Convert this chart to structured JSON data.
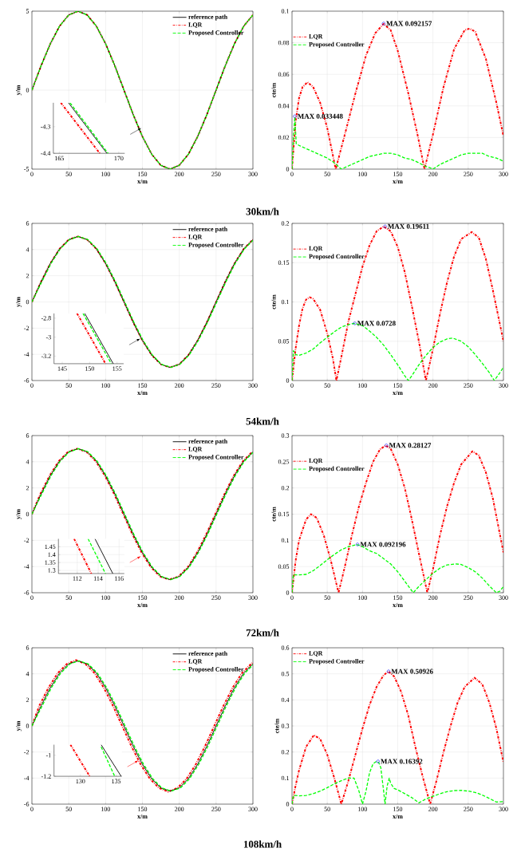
{
  "chart_data": [
    {
      "type": "line",
      "xlabel": "x/m",
      "ylabel": "y/m",
      "xlim": [
        0,
        300
      ],
      "xticks": [
        0,
        50,
        100,
        150,
        200,
        250,
        300
      ],
      "ylim": [
        -5,
        5
      ],
      "yticks": [
        -5,
        0,
        5
      ],
      "grid": true,
      "legend": "top right",
      "annotations": [
        "30km/h"
      ],
      "x": [
        0,
        12.5,
        25,
        37.5,
        50,
        62.5,
        75,
        87.5,
        100,
        112.5,
        125,
        137.5,
        150,
        162.5,
        175,
        187.5,
        200,
        212.5,
        225,
        237.5,
        250,
        262.5,
        275,
        287.5,
        300
      ],
      "series": [
        {
          "name": "reference path",
          "color": "#000000",
          "line_style": "solid",
          "values": [
            0,
            1.55,
            2.94,
            4.05,
            4.76,
            5,
            4.76,
            4.05,
            2.94,
            1.55,
            0,
            -1.55,
            -2.94,
            -4.05,
            -4.76,
            -5,
            -4.76,
            -4.05,
            -2.94,
            -1.55,
            0,
            1.55,
            2.94,
            4.05,
            4.76
          ]
        },
        {
          "name": "LQR",
          "color": "#ff0000",
          "line_style": "dashdot",
          "values": [
            0,
            1.55,
            2.94,
            4.05,
            4.76,
            5,
            4.76,
            4.05,
            2.94,
            1.55,
            0,
            -1.55,
            -2.94,
            -4.05,
            -4.76,
            -5,
            -4.76,
            -4.05,
            -2.94,
            -1.55,
            0,
            1.55,
            2.94,
            4.05,
            4.76
          ]
        },
        {
          "name": "Proposed Controller",
          "color": "#00ff00",
          "line_style": "dashed",
          "values": [
            0,
            1.55,
            2.94,
            4.05,
            4.76,
            5,
            4.76,
            4.05,
            2.94,
            1.55,
            0,
            -1.55,
            -2.94,
            -4.05,
            -4.76,
            -5,
            -4.76,
            -4.05,
            -2.94,
            -1.55,
            0,
            1.55,
            2.94,
            4.05,
            4.76
          ]
        }
      ]
    },
    {
      "type": "line",
      "xlim": [
        164.5,
        170.5
      ],
      "xticks": [
        165,
        170
      ],
      "ylim": [
        -4.4,
        -4.21
      ],
      "yticks": [
        -4.4,
        -4.3
      ],
      "series": [
        {
          "color": "#000000",
          "line_style": "solid",
          "x": [
            165.77,
            169.0
          ],
          "values": [
            -4.21,
            -4.4
          ]
        },
        {
          "color": "#ff0000",
          "line_style": "dashdot",
          "x": [
            165.13,
            168.4
          ],
          "values": [
            -4.21,
            -4.4
          ]
        },
        {
          "color": "#00ff00",
          "line_style": "dashed",
          "x": [
            165.9,
            169.1
          ],
          "values": [
            -4.21,
            -4.4
          ]
        }
      ]
    },
    {
      "type": "line",
      "xlabel": "x/m",
      "ylabel": "cte/m",
      "xlim": [
        0,
        300
      ],
      "xticks": [
        0,
        50,
        100,
        150,
        200,
        250,
        300
      ],
      "ylim": [
        0,
        0.1
      ],
      "yticks": [
        0,
        0.02,
        0.04,
        0.06,
        0.08,
        0.1
      ],
      "grid": true,
      "legend": "top left",
      "series": [
        {
          "name": "LQR",
          "color": "#ff0000",
          "line_style": "dashdot",
          "x": [
            0,
            5,
            10,
            15,
            22,
            30,
            40,
            50,
            62,
            75,
            90,
            105,
            118,
            130,
            140,
            150,
            165,
            178,
            188,
            200,
            215,
            230,
            245,
            252,
            260,
            275,
            290,
            300
          ],
          "values": [
            0,
            0.03,
            0.045,
            0.052,
            0.055,
            0.052,
            0.042,
            0.026,
            0,
            0.022,
            0.048,
            0.072,
            0.086,
            0.092,
            0.088,
            0.075,
            0.048,
            0.022,
            0,
            0.022,
            0.052,
            0.076,
            0.088,
            0.089,
            0.087,
            0.07,
            0.042,
            0.021
          ]
        },
        {
          "name": "Proposed Controller",
          "color": "#00ff00",
          "line_style": "dashed",
          "x": [
            0,
            2,
            4,
            6,
            10,
            20,
            30,
            40,
            50,
            60,
            65,
            70,
            80,
            90,
            100,
            110,
            120,
            130,
            140,
            150,
            160,
            170,
            180,
            188,
            195,
            200,
            210,
            220,
            230,
            240,
            250,
            260,
            270,
            275,
            280,
            290,
            300
          ],
          "values": [
            0,
            0.02,
            0.033,
            0.016,
            0.015,
            0.013,
            0.011,
            0.009,
            0.007,
            0.004,
            0.002,
            0,
            0.002,
            0.004,
            0.006,
            0.008,
            0.009,
            0.01,
            0.01,
            0.009,
            0.007,
            0.006,
            0.004,
            0.002,
            0.001,
            0,
            0.003,
            0.005,
            0.007,
            0.009,
            0.01,
            0.01,
            0.01,
            0.009,
            0.008,
            0.007,
            0.005
          ]
        },
        {
          "type": "scatter",
          "color": "#0000ff",
          "marker": "circle",
          "x": [
            4,
            130
          ],
          "values": [
            0.033448,
            0.092157
          ]
        }
      ],
      "annotations": [
        {
          "text": "MAX 0.033448",
          "x": 4,
          "y": 0.033448
        },
        {
          "text": "MAX 0.092157",
          "x": 130,
          "y": 0.092157
        }
      ]
    },
    {
      "type": "line",
      "xlabel": "x/m",
      "ylabel": "y/m",
      "xlim": [
        0,
        300
      ],
      "xticks": [
        0,
        50,
        100,
        150,
        200,
        250,
        300
      ],
      "ylim": [
        -6,
        6
      ],
      "yticks": [
        -6,
        -4,
        -2,
        0,
        2,
        4,
        6
      ],
      "grid": true,
      "legend": "top right",
      "annotations": [
        "54km/h"
      ],
      "x": [
        0,
        12.5,
        25,
        37.5,
        50,
        62.5,
        75,
        87.5,
        100,
        112.5,
        125,
        137.5,
        150,
        162.5,
        175,
        187.5,
        200,
        212.5,
        225,
        237.5,
        250,
        262.5,
        275,
        287.5,
        300
      ],
      "series": [
        {
          "name": "reference path",
          "color": "#000000",
          "line_style": "solid",
          "values": [
            0,
            1.55,
            2.94,
            4.05,
            4.76,
            5,
            4.76,
            4.05,
            2.94,
            1.55,
            0,
            -1.55,
            -2.94,
            -4.05,
            -4.76,
            -5,
            -4.76,
            -4.05,
            -2.94,
            -1.55,
            0,
            1.55,
            2.94,
            4.05,
            4.76
          ]
        },
        {
          "name": "LQR",
          "color": "#ff0000",
          "line_style": "dashdot",
          "values": [
            0,
            1.55,
            2.94,
            4.05,
            4.76,
            5,
            4.76,
            4.05,
            2.94,
            1.55,
            0,
            -1.55,
            -2.94,
            -4.05,
            -4.76,
            -5,
            -4.76,
            -4.05,
            -2.94,
            -1.55,
            0,
            1.55,
            2.94,
            4.05,
            4.76
          ]
        },
        {
          "name": "Proposed Controller",
          "color": "#00ff00",
          "line_style": "dashed",
          "x": [
            0,
            13.5,
            26,
            38.5,
            51,
            63.5,
            76,
            88.5,
            101,
            113.5,
            126,
            138.5,
            151,
            163.5,
            176,
            188.5,
            201,
            213.5,
            226,
            238.5,
            251,
            263.5,
            276,
            288.5,
            300
          ],
          "values": [
            0,
            1.55,
            2.94,
            4.05,
            4.76,
            5,
            4.76,
            4.05,
            2.94,
            1.55,
            0,
            -1.55,
            -2.94,
            -4.05,
            -4.76,
            -5,
            -4.76,
            -4.05,
            -2.94,
            -1.55,
            0,
            1.55,
            2.94,
            4.05,
            4.7
          ]
        }
      ]
    },
    {
      "type": "line",
      "xlim": [
        143.5,
        156.2
      ],
      "xticks": [
        145,
        150,
        155
      ],
      "ylim": [
        -3.28,
        -2.75
      ],
      "yticks": [
        -3.2,
        -3,
        -2.8
      ],
      "series": [
        {
          "color": "#000000",
          "line_style": "solid",
          "x": [
            149.1,
            154.3
          ],
          "values": [
            -2.75,
            -3.28
          ]
        },
        {
          "color": "#ff0000",
          "line_style": "dashdot",
          "x": [
            147.7,
            152.9
          ],
          "values": [
            -2.75,
            -3.28
          ]
        },
        {
          "color": "#00ff00",
          "line_style": "dashed",
          "x": [
            148.8,
            153.96
          ],
          "values": [
            -2.75,
            -3.28
          ]
        }
      ]
    },
    {
      "type": "line",
      "xlabel": "x/m",
      "ylabel": "cte/m",
      "xlim": [
        0,
        300
      ],
      "xticks": [
        0,
        50,
        100,
        150,
        200,
        250,
        300
      ],
      "ylim": [
        0,
        0.2
      ],
      "yticks": [
        0,
        0.05,
        0.1,
        0.15,
        0.2
      ],
      "grid": true,
      "legend": "top left",
      "series": [
        {
          "name": "LQR",
          "color": "#ff0000",
          "line_style": "dashdot",
          "x": [
            0,
            5,
            10,
            15,
            20,
            25,
            30,
            40,
            50,
            58,
            63,
            70,
            80,
            90,
            100,
            110,
            120,
            130,
            140,
            150,
            160,
            170,
            180,
            190,
            200,
            210,
            220,
            230,
            240,
            255,
            265,
            275,
            285,
            300
          ],
          "values": [
            0,
            0.04,
            0.07,
            0.092,
            0.103,
            0.106,
            0.104,
            0.09,
            0.06,
            0.028,
            0,
            0.03,
            0.075,
            0.11,
            0.145,
            0.172,
            0.19,
            0.196,
            0.19,
            0.17,
            0.138,
            0.095,
            0.05,
            0,
            0.04,
            0.085,
            0.125,
            0.158,
            0.18,
            0.189,
            0.182,
            0.155,
            0.115,
            0.05
          ]
        },
        {
          "name": "Proposed Controller",
          "color": "#00ff00",
          "line_style": "dashed",
          "x": [
            0,
            2,
            5,
            10,
            20,
            30,
            40,
            50,
            60,
            70,
            80,
            88,
            100,
            110,
            120,
            130,
            140,
            150,
            160,
            165,
            170,
            180,
            190,
            200,
            210,
            220,
            228,
            240,
            250,
            260,
            270,
            280,
            287,
            295,
            300
          ],
          "values": [
            0,
            0.038,
            0.033,
            0.032,
            0.035,
            0.04,
            0.048,
            0.055,
            0.062,
            0.068,
            0.071,
            0.0728,
            0.07,
            0.063,
            0.055,
            0.045,
            0.033,
            0.02,
            0.006,
            0,
            0.006,
            0.02,
            0.032,
            0.042,
            0.049,
            0.053,
            0.054,
            0.05,
            0.043,
            0.033,
            0.022,
            0.01,
            0,
            0.01,
            0.017
          ]
        },
        {
          "type": "scatter",
          "color": "#0000ff",
          "marker": "circle",
          "x": [
            132,
            89
          ],
          "values": [
            0.19611,
            0.0728
          ]
        }
      ],
      "annotations": [
        {
          "text": "MAX 0.19611",
          "x": 132,
          "y": 0.19611
        },
        {
          "text": "MAX 0.0728",
          "x": 89,
          "y": 0.0728
        }
      ]
    },
    {
      "type": "line",
      "xlabel": "x/m",
      "ylabel": "y/m",
      "xlim": [
        0,
        300
      ],
      "xticks": [
        0,
        50,
        100,
        150,
        200,
        250,
        300
      ],
      "ylim": [
        -6,
        6
      ],
      "yticks": [
        -6,
        -4,
        -2,
        0,
        2,
        4,
        6
      ],
      "grid": true,
      "legend": "top right",
      "annotations": [
        "72km/h"
      ],
      "x": [
        0,
        12.5,
        25,
        37.5,
        50,
        62.5,
        75,
        87.5,
        100,
        112.5,
        125,
        137.5,
        150,
        162.5,
        175,
        187.5,
        200,
        212.5,
        225,
        237.5,
        250,
        262.5,
        275,
        287.5,
        300
      ],
      "series": [
        {
          "name": "reference path",
          "color": "#000000",
          "line_style": "solid",
          "values": [
            0,
            1.55,
            2.94,
            4.05,
            4.76,
            5,
            4.76,
            4.05,
            2.94,
            1.55,
            0,
            -1.55,
            -2.94,
            -4.05,
            -4.76,
            -5,
            -4.76,
            -4.05,
            -2.94,
            -1.55,
            0,
            1.55,
            2.94,
            4.05,
            4.76
          ]
        },
        {
          "name": "LQR",
          "color": "#ff0000",
          "line_style": "dashdot",
          "x": [
            0,
            11.5,
            24,
            36.5,
            49,
            61.5,
            74,
            86.5,
            99,
            111.5,
            124,
            136.5,
            149,
            161.5,
            174,
            186.5,
            199,
            211.5,
            224,
            236.5,
            249,
            261.5,
            274,
            286.5,
            299
          ],
          "values": [
            0,
            1.55,
            2.94,
            4.05,
            4.76,
            5,
            4.76,
            4.05,
            2.94,
            1.55,
            0,
            -1.55,
            -2.94,
            -4.05,
            -4.76,
            -5,
            -4.76,
            -4.05,
            -2.94,
            -1.55,
            0,
            1.55,
            2.94,
            4.05,
            4.76
          ]
        },
        {
          "name": "Proposed Controller",
          "color": "#00ff00",
          "line_style": "dashed",
          "x": [
            0,
            13.5,
            26,
            38.5,
            51,
            63.5,
            76,
            88.5,
            101,
            113.5,
            126,
            138.5,
            151,
            163.5,
            176,
            188.5,
            201,
            213.5,
            226,
            238.5,
            251,
            263.5,
            276,
            288.5,
            300
          ],
          "values": [
            0,
            1.55,
            2.94,
            4.05,
            4.76,
            5,
            4.76,
            4.05,
            2.94,
            1.55,
            0,
            -1.55,
            -2.94,
            -4.05,
            -4.76,
            -5,
            -4.76,
            -4.05,
            -2.94,
            -1.55,
            0,
            1.55,
            2.94,
            4.05,
            4.7
          ]
        }
      ]
    },
    {
      "type": "line",
      "xlim": [
        110.2,
        116.5
      ],
      "xticks": [
        112,
        114,
        116
      ],
      "ylim": [
        1.28,
        1.5
      ],
      "yticks": [
        1.3,
        1.35,
        1.4,
        1.45
      ],
      "grid": true,
      "series": [
        {
          "color": "#000000",
          "line_style": "solid",
          "x": [
            113.7,
            115.4
          ],
          "values": [
            1.5,
            1.28
          ]
        },
        {
          "color": "#ff0000",
          "line_style": "dashdot",
          "x": [
            111.7,
            113.35
          ],
          "values": [
            1.5,
            1.28
          ]
        },
        {
          "color": "#00ff00",
          "line_style": "dashed",
          "x": [
            113.04,
            114.7
          ],
          "values": [
            1.5,
            1.28
          ]
        }
      ]
    },
    {
      "type": "line",
      "xlabel": "x/m",
      "ylabel": "cte/m",
      "xlim": [
        0,
        300
      ],
      "xticks": [
        0,
        50,
        100,
        150,
        200,
        250,
        300
      ],
      "ylim": [
        0,
        0.3
      ],
      "yticks": [
        0,
        0.05,
        0.1,
        0.15,
        0.2,
        0.25,
        0.3
      ],
      "grid": true,
      "legend": "top left",
      "series": [
        {
          "name": "LQR",
          "color": "#ff0000",
          "line_style": "dashdot",
          "x": [
            0,
            5,
            10,
            20,
            27,
            35,
            45,
            55,
            66,
            75,
            85,
            95,
            105,
            115,
            125,
            133,
            140,
            150,
            160,
            170,
            180,
            192,
            200,
            210,
            220,
            230,
            240,
            256,
            265,
            275,
            285,
            300
          ],
          "values": [
            0,
            0.06,
            0.1,
            0.14,
            0.15,
            0.143,
            0.11,
            0.062,
            0,
            0.05,
            0.11,
            0.165,
            0.21,
            0.25,
            0.274,
            0.281,
            0.275,
            0.245,
            0.2,
            0.14,
            0.075,
            0,
            0.045,
            0.11,
            0.165,
            0.21,
            0.245,
            0.27,
            0.262,
            0.23,
            0.18,
            0.077
          ]
        },
        {
          "name": "Proposed Controller",
          "color": "#00ff00",
          "line_style": "dashed",
          "x": [
            0,
            2,
            5,
            10,
            20,
            30,
            40,
            50,
            60,
            70,
            80,
            92,
            100,
            110,
            120,
            130,
            140,
            150,
            160,
            172,
            180,
            190,
            200,
            210,
            220,
            232,
            240,
            250,
            260,
            270,
            280,
            290,
            295,
            300
          ],
          "values": [
            0,
            0.035,
            0.034,
            0.034,
            0.035,
            0.042,
            0.052,
            0.063,
            0.073,
            0.082,
            0.088,
            0.092,
            0.088,
            0.08,
            0.075,
            0.065,
            0.055,
            0.04,
            0.022,
            0,
            0.012,
            0.025,
            0.037,
            0.047,
            0.053,
            0.055,
            0.054,
            0.048,
            0.04,
            0.028,
            0.013,
            0,
            0.003,
            0.012
          ]
        },
        {
          "type": "scatter",
          "color": "#0000ff",
          "marker": "circle",
          "x": [
            134,
            93
          ],
          "values": [
            0.28127,
            0.092196
          ]
        }
      ],
      "annotations": [
        {
          "text": "MAX 0.28127",
          "x": 134,
          "y": 0.28127
        },
        {
          "text": "MAX 0.092196",
          "x": 93,
          "y": 0.092196
        }
      ]
    },
    {
      "type": "line",
      "xlabel": "x/m",
      "ylabel": "y/m",
      "xlim": [
        0,
        300
      ],
      "xticks": [
        0,
        50,
        100,
        150,
        200,
        250,
        300
      ],
      "ylim": [
        -6,
        6
      ],
      "yticks": [
        -6,
        -4,
        -2,
        0,
        2,
        4,
        6
      ],
      "grid": true,
      "legend": "top right",
      "annotations": [
        "108km/h"
      ],
      "x": [
        0,
        12.5,
        25,
        37.5,
        50,
        62.5,
        75,
        87.5,
        100,
        112.5,
        125,
        137.5,
        150,
        162.5,
        175,
        187.5,
        200,
        212.5,
        225,
        237.5,
        250,
        262.5,
        275,
        287.5,
        300
      ],
      "series": [
        {
          "name": "reference path",
          "color": "#000000",
          "line_style": "solid",
          "values": [
            0,
            1.55,
            2.94,
            4.05,
            4.76,
            5,
            4.76,
            4.05,
            2.94,
            1.55,
            0,
            -1.55,
            -2.94,
            -4.05,
            -4.76,
            -5,
            -4.76,
            -4.05,
            -2.94,
            -1.55,
            0,
            1.55,
            2.94,
            4.05,
            4.76
          ]
        },
        {
          "name": "LQR",
          "color": "#ff0000",
          "line_style": "dashdot",
          "x": [
            0,
            10,
            22.5,
            35,
            47.5,
            60,
            72.5,
            85,
            97.5,
            110,
            122.5,
            135,
            147.5,
            160,
            172.5,
            185,
            197.5,
            210,
            222.5,
            235,
            247.5,
            260,
            272.5,
            285,
            297.5,
            300
          ],
          "values": [
            0,
            1.55,
            2.94,
            4.05,
            4.76,
            5.05,
            4.76,
            4.05,
            2.94,
            1.55,
            0,
            -1.55,
            -2.94,
            -4.05,
            -4.76,
            -5.05,
            -4.76,
            -4.05,
            -2.94,
            -1.55,
            0,
            1.55,
            2.94,
            4.05,
            4.76,
            4.85
          ]
        },
        {
          "name": "Proposed Controller",
          "color": "#00ff00",
          "line_style": "dashed",
          "x": [
            0,
            14,
            26.5,
            39,
            51.5,
            64,
            76.5,
            89,
            101.5,
            114,
            126.5,
            139,
            151.5,
            164,
            176.5,
            189,
            201.5,
            214,
            226.5,
            239,
            251.5,
            264,
            276.5,
            289,
            300
          ],
          "values": [
            0,
            1.55,
            2.94,
            4.05,
            4.76,
            5,
            4.76,
            4.05,
            2.94,
            1.55,
            0,
            -1.55,
            -2.94,
            -4.05,
            -4.76,
            -5,
            -4.76,
            -4.05,
            -2.94,
            -1.55,
            0,
            1.55,
            2.94,
            4.05,
            4.68
          ]
        }
      ]
    },
    {
      "type": "line",
      "xlim": [
        126.3,
        135.8
      ],
      "xticks": [
        130,
        135
      ],
      "ylim": [
        -1.2,
        -0.9
      ],
      "yticks": [
        -1.2,
        -1
      ],
      "series": [
        {
          "color": "#000000",
          "line_style": "solid",
          "x": [
            132.9,
            135.7
          ],
          "values": [
            -0.9,
            -1.2
          ]
        },
        {
          "color": "#ff0000",
          "line_style": "dashdot",
          "x": [
            128.6,
            131.3
          ],
          "values": [
            -0.9,
            -1.2
          ]
        },
        {
          "color": "#00ff00",
          "line_style": "dashed",
          "x": [
            132.9,
            134.8
          ],
          "values": [
            -0.92,
            -1.2
          ]
        }
      ]
    },
    {
      "type": "line",
      "xlabel": "x/m",
      "ylabel": "cte/m",
      "xlim": [
        0,
        300
      ],
      "xticks": [
        0,
        50,
        100,
        150,
        200,
        250,
        300
      ],
      "ylim": [
        0,
        0.6
      ],
      "yticks": [
        0,
        0.1,
        0.2,
        0.3,
        0.4,
        0.5,
        0.6
      ],
      "grid": true,
      "legend": "top left",
      "series": [
        {
          "name": "LQR",
          "color": "#ff0000",
          "line_style": "dashdot",
          "x": [
            0,
            5,
            10,
            20,
            31,
            40,
            50,
            60,
            70,
            80,
            90,
            100,
            110,
            120,
            130,
            137,
            145,
            155,
            165,
            175,
            185,
            196,
            205,
            215,
            225,
            235,
            245,
            259,
            270,
            280,
            290,
            300
          ],
          "values": [
            0,
            0.07,
            0.13,
            0.22,
            0.265,
            0.25,
            0.19,
            0.1,
            0,
            0.09,
            0.19,
            0.29,
            0.38,
            0.45,
            0.495,
            0.509,
            0.49,
            0.43,
            0.34,
            0.22,
            0.11,
            0,
            0.09,
            0.2,
            0.3,
            0.39,
            0.45,
            0.485,
            0.46,
            0.39,
            0.29,
            0.16
          ]
        },
        {
          "name": "Proposed Controller",
          "color": "#00ff00",
          "line_style": "dashed",
          "x": [
            0,
            2,
            5,
            10,
            20,
            30,
            40,
            50,
            60,
            70,
            80,
            88,
            95,
            100,
            105,
            110,
            115,
            120,
            123,
            126,
            130,
            132,
            135,
            138,
            140,
            145,
            150,
            160,
            170,
            180,
            190,
            200,
            210,
            220,
            230,
            240,
            250,
            260,
            270,
            280,
            290,
            300
          ],
          "values": [
            0,
            0.033,
            0.033,
            0.032,
            0.033,
            0.04,
            0.05,
            0.063,
            0.078,
            0.09,
            0.1,
            0.1,
            0.05,
            0,
            0.05,
            0.12,
            0.155,
            0.164,
            0.16,
            0.14,
            0.05,
            0,
            0.07,
            0.1,
            0.08,
            0.06,
            0.055,
            0.04,
            0.025,
            0.005,
            0.02,
            0.03,
            0.04,
            0.048,
            0.052,
            0.053,
            0.05,
            0.045,
            0.035,
            0.022,
            0.008,
            0.01
          ]
        },
        {
          "type": "scatter",
          "color": "#0000ff",
          "marker": "circle",
          "x": [
            137,
            122
          ],
          "values": [
            0.50926,
            0.16392
          ]
        }
      ],
      "annotations": [
        {
          "text": "MAX 0.50926",
          "x": 137,
          "y": 0.50926
        },
        {
          "text": "MAX 0.16392",
          "x": 122,
          "y": 0.16392
        }
      ]
    }
  ]
}
